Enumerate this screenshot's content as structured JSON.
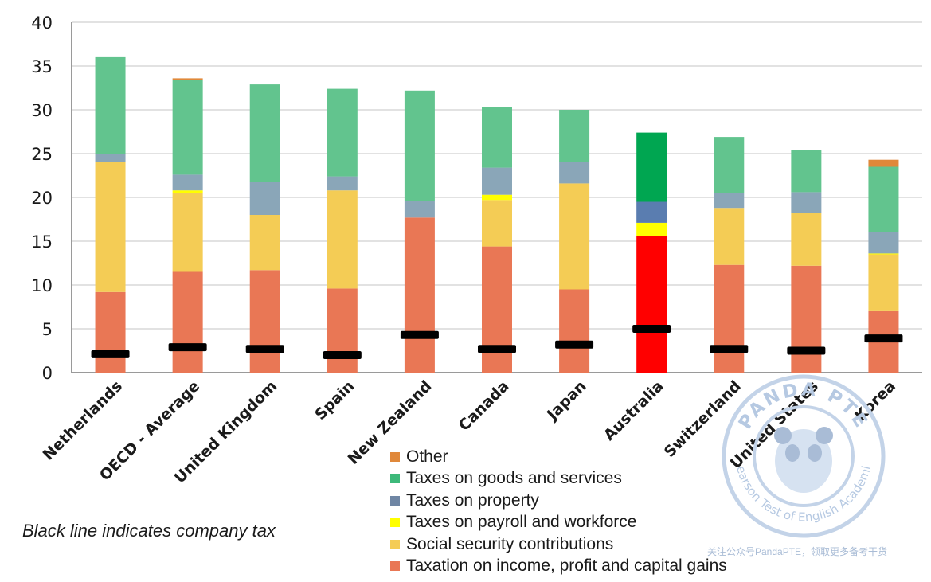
{
  "chart_data": {
    "type": "bar",
    "stacked": true,
    "yticks": [
      0,
      5,
      10,
      15,
      20,
      25,
      30,
      35,
      40
    ],
    "ylim": [
      0,
      40
    ],
    "grid": true,
    "categories": [
      "Netherlands",
      "OECD - Average",
      "United Kingdom",
      "Spain",
      "New Zealand",
      "Canada",
      "Japan",
      "Australia",
      "Switzerland",
      "United States",
      "Korea"
    ],
    "highlight_category": "Australia",
    "series": [
      {
        "name": "Taxation on income, profit and capital gains",
        "color": "#e97755",
        "highlight_color": "#ff0000",
        "values": [
          9.2,
          11.5,
          11.7,
          9.6,
          17.7,
          14.4,
          9.5,
          15.6,
          12.3,
          12.2,
          7.1
        ]
      },
      {
        "name": "Social security contributions",
        "color": "#f4cc55",
        "highlight_color": "#f4cc55",
        "values": [
          14.8,
          9.0,
          6.3,
          11.2,
          0.0,
          5.3,
          12.1,
          0.0,
          6.5,
          6.0,
          6.4
        ]
      },
      {
        "name": "Taxes on payroll and workforce",
        "color": "#ffff00",
        "highlight_color": "#ffff00",
        "values": [
          0.0,
          0.3,
          0.0,
          0.0,
          0.0,
          0.6,
          0.0,
          1.5,
          0.0,
          0.0,
          0.1
        ]
      },
      {
        "name": "Taxes on property",
        "color": "#8aa6b8",
        "highlight_color": "#5a7db0",
        "values": [
          1.0,
          1.8,
          3.8,
          1.6,
          1.9,
          3.1,
          2.4,
          2.4,
          1.7,
          2.4,
          2.4
        ]
      },
      {
        "name": "Taxes on goods and services",
        "color": "#62c48e",
        "highlight_color": "#00a651",
        "values": [
          11.1,
          10.8,
          11.1,
          10.0,
          12.6,
          6.9,
          6.0,
          7.9,
          6.4,
          4.8,
          7.5
        ]
      },
      {
        "name": "Other",
        "color": "#e0883a",
        "highlight_color": "#e0883a",
        "values": [
          0.0,
          0.2,
          0.0,
          0.0,
          0.0,
          0.0,
          0.0,
          0.0,
          0.0,
          0.0,
          0.8
        ]
      }
    ],
    "company_tax": {
      "color": "#000000",
      "values": [
        2.1,
        2.9,
        2.7,
        2.0,
        4.3,
        2.7,
        3.2,
        5.0,
        2.7,
        2.5,
        3.9
      ]
    },
    "legend": {
      "placement": "bottom-right",
      "items": [
        {
          "label": "Other",
          "color": "#e0883a"
        },
        {
          "label": "Taxes on goods and services",
          "color": "#3db97a"
        },
        {
          "label": "Taxes on property",
          "color": "#6f86a4"
        },
        {
          "label": "Taxes on payroll and workforce",
          "color": "#ffff00"
        },
        {
          "label": "Social security contributions",
          "color": "#f4cc55"
        },
        {
          "label": "Taxation on income, profit and capital gains",
          "color": "#e97755"
        }
      ]
    },
    "note": "Black line indicates company tax"
  },
  "watermark": {
    "brand": "PANDA PTE",
    "tagline": "Pearson Test of English Academic",
    "footer": "关注公众号PandaPTE，领取更多备考干货"
  }
}
